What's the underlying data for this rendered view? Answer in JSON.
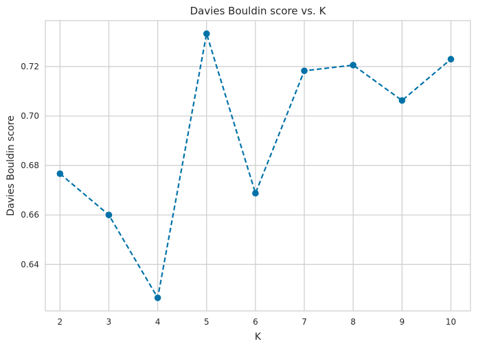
{
  "chart_data": {
    "type": "line",
    "title": "Davies Bouldin score vs. K",
    "xlabel": "K",
    "ylabel": "Davies Bouldin score",
    "x": [
      2,
      3,
      4,
      5,
      6,
      7,
      8,
      9,
      10
    ],
    "series": [
      {
        "values": [
          0.6767,
          0.66,
          0.6265,
          0.7333,
          0.6688,
          0.7183,
          0.7206,
          0.7063,
          0.723
        ],
        "color": "#0072a8",
        "line_style": "dashed",
        "marker": "circle"
      }
    ],
    "x_ticks": [
      "2",
      "3",
      "4",
      "5",
      "6",
      "7",
      "8",
      "9",
      "10"
    ],
    "y_ticks": [
      "0.64",
      "0.66",
      "0.68",
      "0.70",
      "0.72"
    ],
    "y_tick_values": [
      0.64,
      0.66,
      0.68,
      0.7,
      0.72
    ],
    "xlim": [
      1.7,
      10.4
    ],
    "ylim": [
      0.6212,
      0.7386
    ],
    "grid": true
  }
}
